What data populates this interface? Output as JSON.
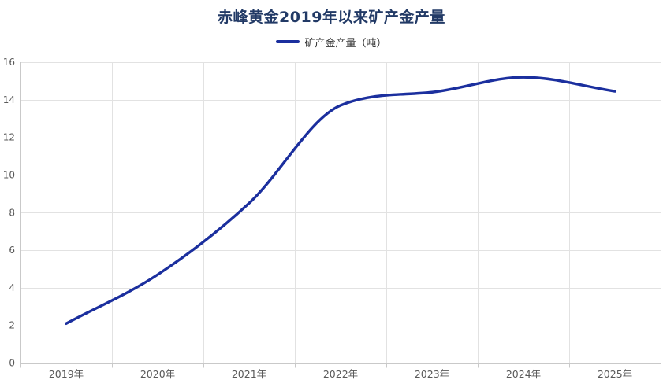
{
  "chart": {
    "title": "赤峰黄金2019年以来矿产金产量",
    "legend_label": "矿产金产量（吨）"
  },
  "chart_data": {
    "type": "line",
    "title": "赤峰黄金2019年以来矿产金产量",
    "categories": [
      "2019年",
      "2020年",
      "2021年",
      "2022年",
      "2023年",
      "2024年",
      "2025年"
    ],
    "series": [
      {
        "name": "矿产金产量（吨）",
        "values": [
          2.1,
          4.7,
          8.5,
          13.7,
          14.4,
          15.2,
          14.45
        ]
      }
    ],
    "xlabel": "",
    "ylabel": "",
    "ylim": [
      0,
      16
    ],
    "y_interval": 2,
    "smooth": true,
    "grid": "both",
    "legend_position": "top",
    "colors": {
      "line": "#1b2f9e",
      "title": "#223a66",
      "axis_label": "#595959",
      "grid_line": "#e2e2e2",
      "axis_line": "#c9c9c9",
      "legend_text": "#333333",
      "background": "#ffffff"
    }
  }
}
